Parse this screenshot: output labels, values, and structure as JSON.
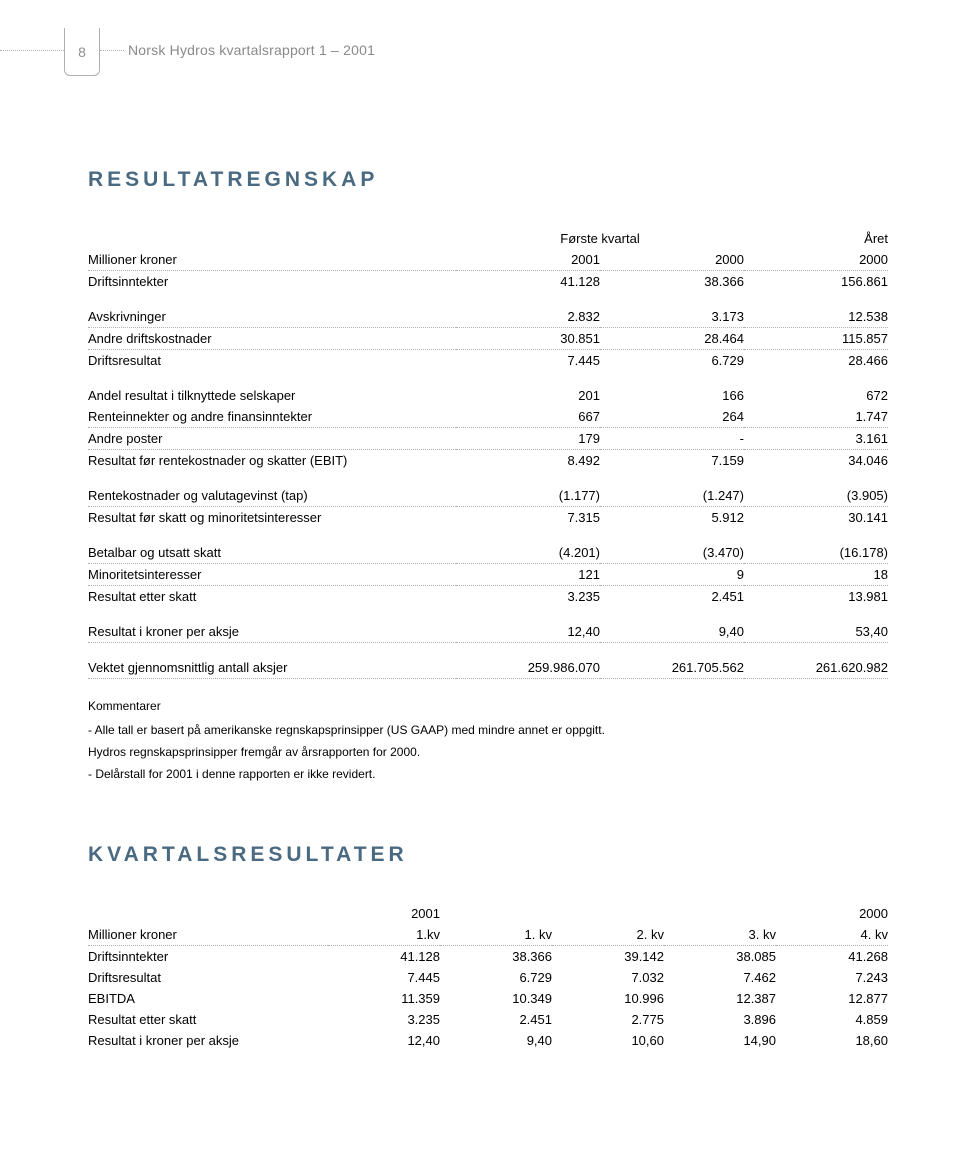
{
  "pageNumber": "8",
  "headerText": "Norsk Hydros kvartalsrapport  1 – 2001",
  "title1": "RESULTATREGNSKAP",
  "title2": "KVARTALSRESULTATER",
  "t1": {
    "colHeaderPeriod": "Første kvartal",
    "colHeaderYear": "Året",
    "hdr": {
      "label": "Millioner kroner",
      "c1": "2001",
      "c2": "2000",
      "c3": "2000"
    },
    "rows": [
      {
        "label": "Driftsinntekter",
        "c1": "41.128",
        "c2": "38.366",
        "c3": "156.861",
        "dotted": false,
        "spaceAfter": true
      },
      {
        "label": "Avskrivninger",
        "c1": "2.832",
        "c2": "3.173",
        "c3": "12.538",
        "dotted": true
      },
      {
        "label": "Andre driftskostnader",
        "c1": "30.851",
        "c2": "28.464",
        "c3": "115.857",
        "dotted": true
      },
      {
        "label": "Driftsresultat",
        "c1": "7.445",
        "c2": "6.729",
        "c3": "28.466",
        "dotted": false,
        "spaceAfter": true
      },
      {
        "label": "Andel resultat i tilknyttede selskaper",
        "c1": "201",
        "c2": "166",
        "c3": "672",
        "dotted": false
      },
      {
        "label": "Renteinnekter og andre finansinntekter",
        "c1": "667",
        "c2": "264",
        "c3": "1.747",
        "dotted": true
      },
      {
        "label": "Andre poster",
        "c1": "179",
        "c2": "-",
        "c3": "3.161",
        "dotted": true
      },
      {
        "label": "Resultat før rentekostnader og skatter (EBIT)",
        "c1": "8.492",
        "c2": "7.159",
        "c3": "34.046",
        "dotted": false,
        "spaceAfter": true
      },
      {
        "label": "Rentekostnader og valutagevinst (tap)",
        "c1": "(1.177)",
        "c2": "(1.247)",
        "c3": "(3.905)",
        "dotted": true
      },
      {
        "label": "Resultat før skatt og minoritetsinteresser",
        "c1": "7.315",
        "c2": "5.912",
        "c3": "30.141",
        "dotted": false,
        "spaceAfter": true
      },
      {
        "label": "Betalbar og utsatt skatt",
        "c1": "(4.201)",
        "c2": "(3.470)",
        "c3": "(16.178)",
        "dotted": true
      },
      {
        "label": "Minoritetsinteresser",
        "c1": "121",
        "c2": "9",
        "c3": "18",
        "dotted": true
      },
      {
        "label": "Resultat etter skatt",
        "c1": "3.235",
        "c2": "2.451",
        "c3": "13.981",
        "dotted": false,
        "spaceAfter": true
      },
      {
        "label": "Resultat i kroner per aksje",
        "c1": "12,40",
        "c2": "9,40",
        "c3": "53,40",
        "dotted": true,
        "spaceAfter": true
      },
      {
        "label": "Vektet gjennomsnittlig antall aksjer",
        "c1": "259.986.070",
        "c2": "261.705.562",
        "c3": "261.620.982",
        "dotted": true
      }
    ]
  },
  "comments": {
    "title": "Kommentarer",
    "lines": [
      "- Alle tall er basert på amerikanske regnskapsprinsipper (US GAAP) med mindre annet er oppgitt.",
      "  Hydros regnskapsprinsipper fremgår av årsrapporten for 2000.",
      "- Delårstall for 2001 i denne rapporten er ikke revidert."
    ]
  },
  "t2": {
    "yearHdr1": "2001",
    "yearHdr2": "2000",
    "hdr": {
      "label": "Millioner kroner",
      "c1": "1.kv",
      "c2": "1. kv",
      "c3": "2. kv",
      "c4": "3. kv",
      "c5": "4. kv"
    },
    "rows": [
      {
        "label": "Driftsinntekter",
        "c1": "41.128",
        "c2": "38.366",
        "c3": "39.142",
        "c4": "38.085",
        "c5": "41.268"
      },
      {
        "label": "Driftsresultat",
        "c1": "7.445",
        "c2": "6.729",
        "c3": "7.032",
        "c4": "7.462",
        "c5": "7.243"
      },
      {
        "label": "EBITDA",
        "c1": "11.359",
        "c2": "10.349",
        "c3": "10.996",
        "c4": "12.387",
        "c5": "12.877"
      },
      {
        "label": "Resultat etter skatt",
        "c1": "3.235",
        "c2": "2.451",
        "c3": "2.775",
        "c4": "3.896",
        "c5": "4.859"
      },
      {
        "label": "Resultat i kroner per aksje",
        "c1": "12,40",
        "c2": "9,40",
        "c3": "10,60",
        "c4": "14,90",
        "c5": "18,60"
      }
    ]
  }
}
